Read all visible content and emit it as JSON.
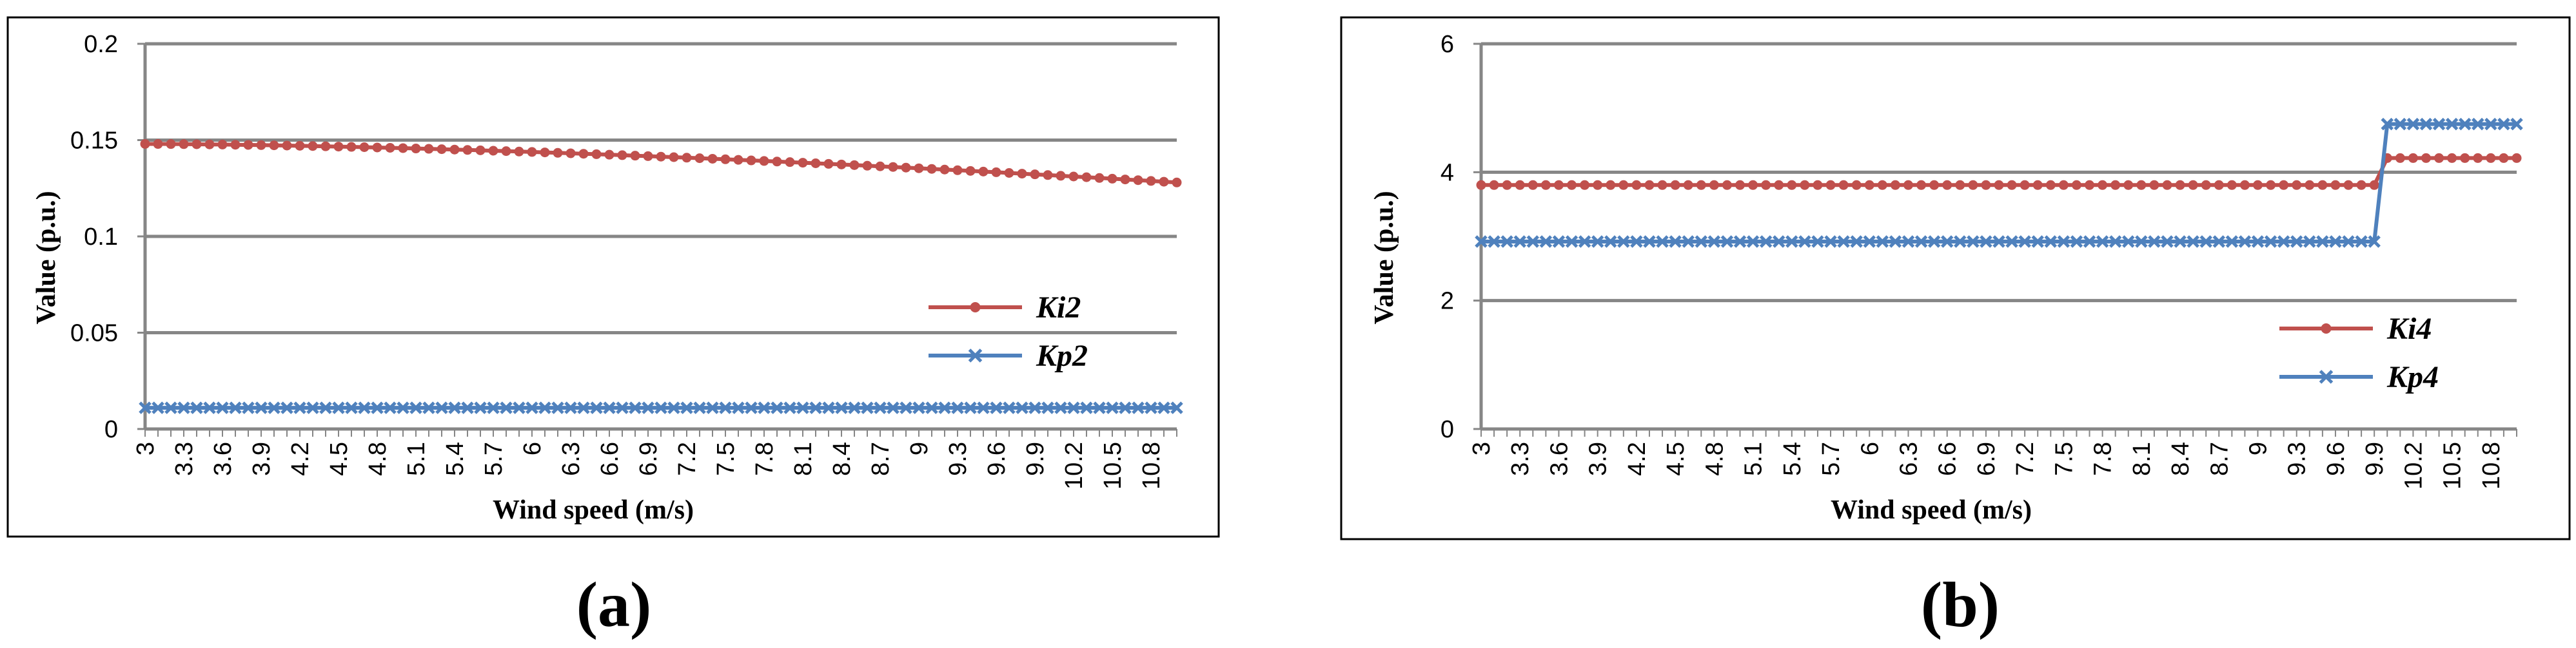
{
  "chart_data": [
    {
      "type": "line",
      "panel_label": "(a)",
      "x": [
        "3",
        "3.1",
        "3.2",
        "3.3",
        "3.4",
        "3.5",
        "3.6",
        "3.7",
        "3.8",
        "3.9",
        "4",
        "4.1",
        "4.2",
        "4.3",
        "4.4",
        "4.5",
        "4.6",
        "4.7",
        "4.8",
        "4.9",
        "5",
        "5.1",
        "5.2",
        "5.3",
        "5.4",
        "5.5",
        "5.6",
        "5.7",
        "5.8",
        "5.9",
        "6",
        "6.1",
        "6.2",
        "6.3",
        "6.4",
        "6.5",
        "6.6",
        "6.7",
        "6.8",
        "6.9",
        "7",
        "7.1",
        "7.2",
        "7.3",
        "7.4",
        "7.5",
        "7.6",
        "7.7",
        "7.8",
        "7.9",
        "8",
        "8.1",
        "8.2",
        "8.3",
        "8.4",
        "8.5",
        "8.6",
        "8.7",
        "8.8",
        "8.9",
        "9",
        "9.1",
        "9.2",
        "9.3",
        "9.4",
        "9.5",
        "9.6",
        "9.7",
        "9.8",
        "9.9",
        "10",
        "10.1",
        "10.2",
        "10.3",
        "10.4",
        "10.5",
        "10.6",
        "10.7",
        "10.8",
        "10.9",
        "11"
      ],
      "x_tick_labels": [
        "3",
        "3.3",
        "3.6",
        "3.9",
        "4.2",
        "4.5",
        "4.8",
        "5.1",
        "5.4",
        "5.7",
        "6",
        "6.3",
        "6.6",
        "6.9",
        "7.2",
        "7.5",
        "7.8",
        "8.1",
        "8.4",
        "8.7",
        "9",
        "9.3",
        "9.6",
        "9.9",
        "10.2",
        "10.5",
        "10.8"
      ],
      "series": [
        {
          "name": "Ki2",
          "color": "#c0504d",
          "marker": "circle",
          "start": 0.148,
          "end": 0.128,
          "curve": 1.6
        },
        {
          "name": "Kp2",
          "color": "#4f81bd",
          "marker": "x",
          "values_constant": 0.011
        }
      ],
      "y_ticks": [
        "0",
        "0.05",
        "0.1",
        "0.15",
        "0.2"
      ],
      "ylim": [
        0,
        0.2
      ],
      "xlabel": "Wind speed (m/s)",
      "ylabel": "Value (p.u.)",
      "grid": "horizontal",
      "legend": "right-middle"
    },
    {
      "type": "line",
      "panel_label": "(b)",
      "x": [
        "3",
        "3.1",
        "3.2",
        "3.3",
        "3.4",
        "3.5",
        "3.6",
        "3.7",
        "3.8",
        "3.9",
        "4",
        "4.1",
        "4.2",
        "4.3",
        "4.4",
        "4.5",
        "4.6",
        "4.7",
        "4.8",
        "4.9",
        "5",
        "5.1",
        "5.2",
        "5.3",
        "5.4",
        "5.5",
        "5.6",
        "5.7",
        "5.8",
        "5.9",
        "6",
        "6.1",
        "6.2",
        "6.3",
        "6.4",
        "6.5",
        "6.6",
        "6.7",
        "6.8",
        "6.9",
        "7",
        "7.1",
        "7.2",
        "7.3",
        "7.4",
        "7.5",
        "7.6",
        "7.7",
        "7.8",
        "7.9",
        "8",
        "8.1",
        "8.2",
        "8.3",
        "8.4",
        "8.5",
        "8.6",
        "8.7",
        "8.8",
        "8.9",
        "9",
        "9.1",
        "9.2",
        "9.3",
        "9.4",
        "9.5",
        "9.6",
        "9.7",
        "9.8",
        "9.9",
        "10",
        "10.1",
        "10.2",
        "10.3",
        "10.4",
        "10.5",
        "10.6",
        "10.7",
        "10.8",
        "10.9",
        "11"
      ],
      "x_tick_labels": [
        "3",
        "3.3",
        "3.6",
        "3.9",
        "4.2",
        "4.5",
        "4.8",
        "5.1",
        "5.4",
        "5.7",
        "6",
        "6.3",
        "6.6",
        "6.9",
        "7.2",
        "7.5",
        "7.8",
        "8.1",
        "8.4",
        "8.7",
        "9",
        "9.3",
        "9.6",
        "9.9",
        "10.2",
        "10.5",
        "10.8"
      ],
      "series": [
        {
          "name": "Ki4",
          "color": "#c0504d",
          "marker": "circle",
          "before": 3.8,
          "after": 4.22,
          "step_after_x": "9.9"
        },
        {
          "name": "Kp4",
          "color": "#4f81bd",
          "marker": "x",
          "before": 2.92,
          "after": 4.75,
          "step_after_x": "9.9"
        }
      ],
      "y_ticks": [
        "0",
        "2",
        "4",
        "6"
      ],
      "ylim": [
        0,
        6
      ],
      "xlabel": "Wind speed (m/s)",
      "ylabel": "Value (p.u.)",
      "grid": "horizontal",
      "legend": "right-middle"
    }
  ]
}
